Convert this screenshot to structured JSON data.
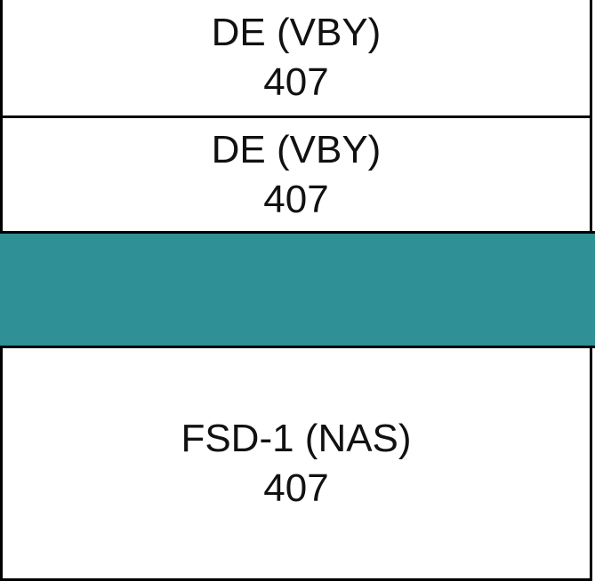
{
  "blocks": [
    {
      "name": "DE (VBY)",
      "value": "407"
    },
    {
      "name": "DE (VBY)",
      "value": "407"
    },
    {
      "name": "",
      "value": "",
      "color": "#2F9196"
    },
    {
      "name": "FSD-1 (NAS)",
      "value": "407"
    }
  ]
}
